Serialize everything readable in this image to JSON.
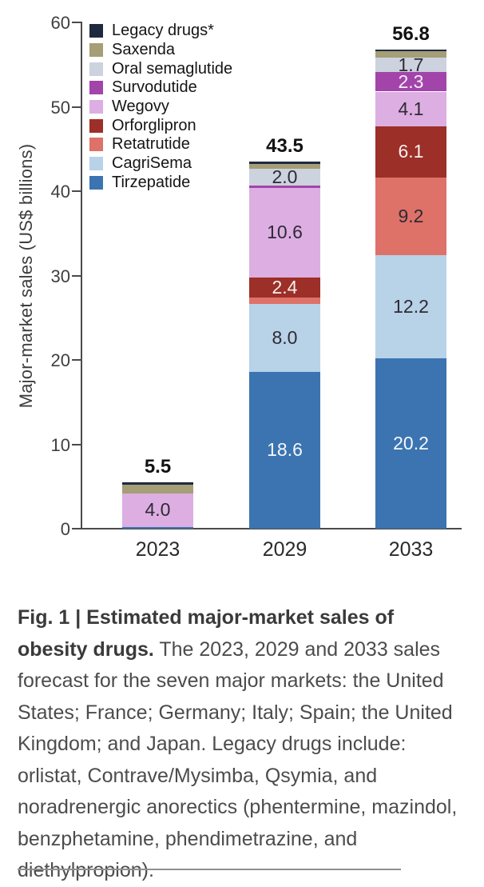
{
  "chart_data": {
    "type": "stacked-bar",
    "ylabel": "Major-market sales (US$ billions)",
    "ylim": [
      0,
      60
    ],
    "yticks": [
      0,
      10,
      20,
      30,
      40,
      50,
      60
    ],
    "grid": false,
    "legend_position": "top-left",
    "categories": [
      "2023",
      "2029",
      "2033"
    ],
    "totals": [
      "5.5",
      "43.5",
      "56.8"
    ],
    "series_bottom_to_top": [
      {
        "name": "Tirzepatide",
        "color": "#3b74b1",
        "label_color": "#f4f7fb",
        "values": [
          0.2,
          18.6,
          20.2
        ],
        "labels": [
          null,
          "18.6",
          "20.2"
        ]
      },
      {
        "name": "CagriSema",
        "color": "#b8d2e8",
        "label_color": "#2d2a35",
        "values": [
          0.0,
          8.0,
          12.2
        ],
        "labels": [
          null,
          "8.0",
          "12.2"
        ]
      },
      {
        "name": "Retatrutide",
        "color": "#de7168",
        "label_color": "#2d2a35",
        "values": [
          0.0,
          0.8,
          9.2
        ],
        "labels": [
          null,
          null,
          "9.2"
        ]
      },
      {
        "name": "Orforglipron",
        "color": "#9c2f27",
        "label_color": "#f6efee",
        "values": [
          0.0,
          2.4,
          6.1
        ],
        "labels": [
          null,
          "2.4",
          "6.1"
        ]
      },
      {
        "name": "Wegovy",
        "color": "#ddaee2",
        "label_color": "#2d2a35",
        "values": [
          4.0,
          10.6,
          4.1
        ],
        "labels": [
          "4.0",
          "10.6",
          "4.1"
        ]
      },
      {
        "name": "Survodutide",
        "color": "#a344ab",
        "label_color": "#f7f1f8",
        "values": [
          0.0,
          0.3,
          2.3
        ],
        "labels": [
          null,
          null,
          "2.3"
        ]
      },
      {
        "name": "Oral semaglutide",
        "color": "#ccd2de",
        "label_color": "#2d2a35",
        "values": [
          0.0,
          2.0,
          1.7
        ],
        "labels": [
          null,
          "2.0",
          "1.7"
        ]
      },
      {
        "name": "Saxenda",
        "color": "#a59e76",
        "label_color": "#2d2a35",
        "values": [
          1.0,
          0.5,
          0.8
        ],
        "labels": [
          null,
          null,
          null
        ]
      },
      {
        "name": "Legacy drugs*",
        "color": "#1f2a40",
        "label_color": "#ffffff",
        "values": [
          0.3,
          0.3,
          0.2
        ],
        "labels": [
          null,
          null,
          null
        ]
      }
    ],
    "legend_top_to_bottom": [
      {
        "label": "Legacy drugs*",
        "color": "#1f2a40"
      },
      {
        "label": "Saxenda",
        "color": "#a59e76"
      },
      {
        "label": "Oral semaglutide",
        "color": "#ccd2de"
      },
      {
        "label": "Survodutide",
        "color": "#a344ab"
      },
      {
        "label": "Wegovy",
        "color": "#ddaee2"
      },
      {
        "label": "Orforglipron",
        "color": "#9c2f27"
      },
      {
        "label": "Retatrutide",
        "color": "#de7168"
      },
      {
        "label": "CagriSema",
        "color": "#b8d2e8"
      },
      {
        "label": "Tirzepatide",
        "color": "#3b74b1"
      }
    ]
  },
  "colors": {
    "axis": "#4a4a4a",
    "tick_text": "#3f3f3f",
    "total_text": "#121212",
    "divider": "#909090"
  },
  "caption": {
    "bold": "Fig. 1 | Estimated major-market sales of obesity drugs.",
    "text": " The 2023, 2029 and 2033 sales forecast for the seven major markets: the United States; France; Germany; Italy; Spain; the United Kingdom; and Japan. Legacy drugs include: orlistat, Contrave/Mysimba, Qsymia, and noradrenergic anorectics (phentermine, mazindol, benzphetamine, phendimetrazine, and diethylpropion)."
  }
}
